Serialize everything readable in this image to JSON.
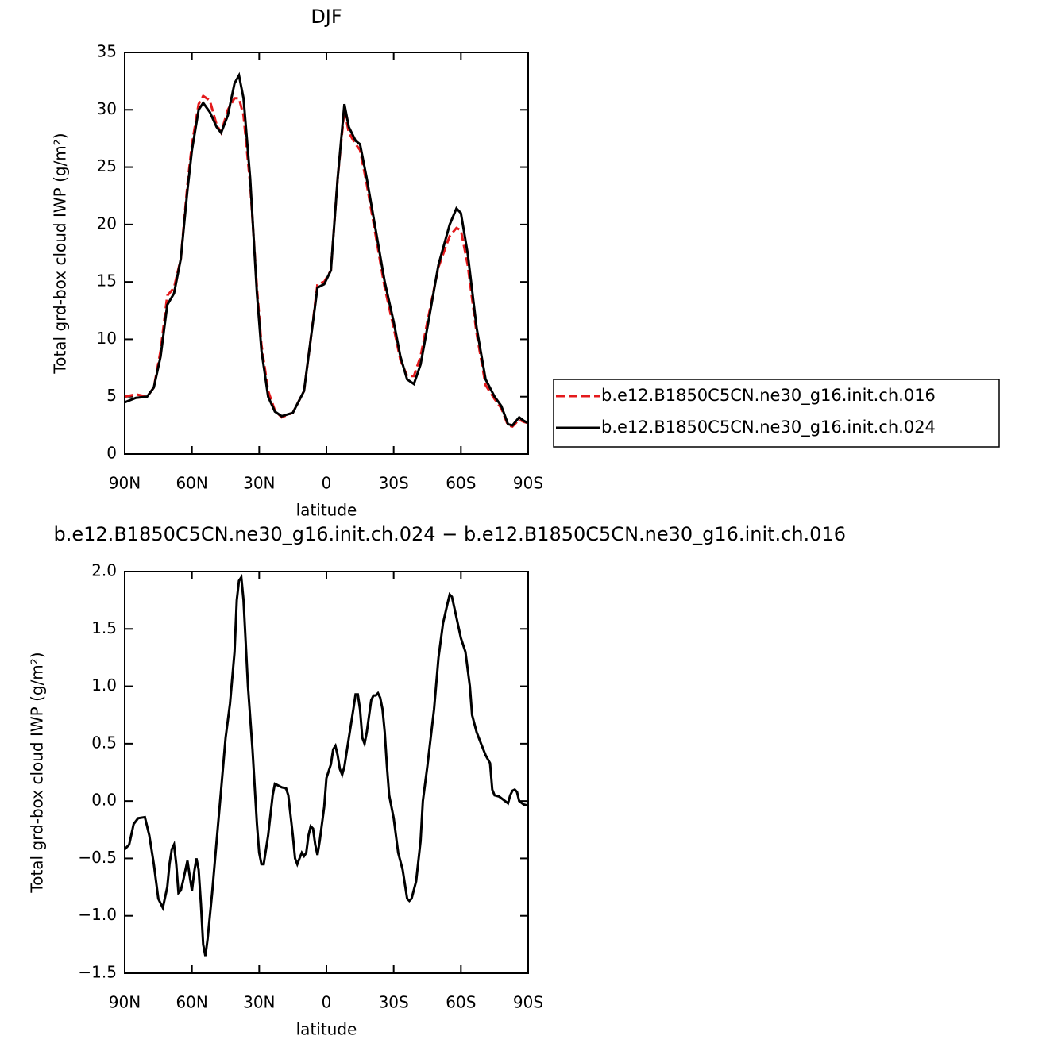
{
  "chart_data": [
    {
      "type": "line",
      "title": "DJF",
      "xlabel": "latitude",
      "ylabel": "Total grd-box cloud IWP (g/m²)",
      "xlim": [
        90,
        -90
      ],
      "xticks": [
        {
          "value": 90,
          "label": "90N"
        },
        {
          "value": 60,
          "label": "60N"
        },
        {
          "value": 30,
          "label": "30N"
        },
        0,
        {
          "value": -30,
          "label": "30S"
        },
        {
          "value": -60,
          "label": "60S"
        },
        {
          "value": -90,
          "label": "90S"
        }
      ],
      "ylim": [
        0,
        35
      ],
      "yticks": [
        0,
        5,
        10,
        15,
        20,
        25,
        30,
        35
      ],
      "legend": "right",
      "x": [
        90,
        85,
        80,
        77,
        74,
        71,
        68,
        65,
        62,
        60,
        57,
        55,
        52,
        49,
        47,
        44,
        41,
        39,
        37,
        34,
        31,
        29,
        26,
        23,
        20,
        15,
        10,
        7,
        4,
        1,
        -2,
        -5,
        -8,
        -10,
        -13,
        -15,
        -18,
        -22,
        -26,
        -30,
        -33,
        -36,
        -39,
        -42,
        -45,
        -50,
        -55,
        -58,
        -60,
        -63,
        -67,
        -71,
        -75,
        -78,
        -81,
        -83,
        -86,
        -88,
        -90
      ],
      "series": [
        {
          "name": "b.e12.B1850C5CN.ne30_g16.init.ch.016",
          "color": "#e41a1c",
          "dash": "dashed",
          "values": [
            5.0,
            5.2,
            5.0,
            5.8,
            9.0,
            13.8,
            14.5,
            17,
            23.5,
            27,
            30.5,
            31.2,
            30.8,
            28.7,
            28.0,
            30.0,
            31.0,
            31.0,
            29.5,
            23.5,
            14.5,
            9.5,
            5.5,
            3.8,
            3.2,
            3.6,
            5.5,
            10,
            14.8,
            15.0,
            16,
            24,
            30.0,
            28,
            27,
            26.5,
            23.5,
            19,
            14.5,
            11.0,
            8.2,
            6.8,
            6.8,
            8.5,
            11.5,
            16.3,
            19,
            19.7,
            19.5,
            16.5,
            10.5,
            6.0,
            4.8,
            4.0,
            2.5,
            2.4,
            3.0,
            2.8,
            2.7
          ]
        },
        {
          "name": "b.e12.B1850C5CN.ne30_g16.init.ch.024",
          "color": "#000000",
          "dash": "solid",
          "values": [
            4.5,
            4.9,
            5.0,
            5.8,
            8.5,
            13.0,
            14.0,
            17,
            23,
            26.5,
            30.0,
            30.6,
            29.8,
            28.5,
            28.0,
            29.5,
            32.3,
            33.0,
            31.0,
            24,
            14,
            9,
            5,
            3.7,
            3.3,
            3.6,
            5.5,
            10,
            14.5,
            14.8,
            16,
            24,
            30.5,
            28.5,
            27.3,
            27,
            24,
            19.5,
            15,
            11.5,
            8.5,
            6.5,
            6.1,
            7.8,
            11,
            16.5,
            20,
            21.4,
            21,
            17.5,
            11,
            6.5,
            5,
            4.2,
            2.6,
            2.5,
            3.2,
            2.9,
            2.7
          ]
        }
      ]
    },
    {
      "type": "line",
      "title": "b.e12.B1850C5CN.ne30_g16.init.ch.024 − b.e12.B1850C5CN.ne30_g16.init.ch.016",
      "xlabel": "latitude",
      "ylabel": "Total grd-box cloud IWP (g/m²)",
      "xlim": [
        90,
        -90
      ],
      "xticks": [
        {
          "value": 90,
          "label": "90N"
        },
        {
          "value": 60,
          "label": "60N"
        },
        {
          "value": 30,
          "label": "30N"
        },
        0,
        {
          "value": -30,
          "label": "30S"
        },
        {
          "value": -60,
          "label": "60S"
        },
        {
          "value": -90,
          "label": "90S"
        }
      ],
      "ylim": [
        -1.5,
        2.0
      ],
      "yticks": [
        {
          "value": -1.5,
          "label": "−1.5"
        },
        {
          "value": -1,
          "label": "−1.0"
        },
        {
          "value": -0.5,
          "label": "−0.5"
        },
        {
          "value": 0,
          "label": "0.0"
        },
        0.5,
        {
          "value": 1,
          "label": "1.0"
        },
        1.5,
        {
          "value": 2,
          "label": "2.0"
        }
      ],
      "color": "#000000",
      "x": [
        90,
        88,
        86,
        84,
        81,
        79,
        77,
        75,
        73,
        71,
        70,
        69,
        68,
        67,
        66,
        65,
        64,
        62,
        61,
        60,
        59,
        58,
        57,
        56,
        55,
        54,
        53,
        51,
        49,
        47,
        45,
        43,
        41,
        40,
        39,
        38,
        37,
        35,
        33,
        31,
        30,
        29,
        28,
        26,
        24,
        23,
        22,
        20,
        18,
        17,
        15,
        14,
        13,
        12,
        11,
        10,
        9,
        8,
        7,
        6,
        5,
        4,
        3,
        1,
        0,
        -2,
        -3,
        -4,
        -5,
        -6,
        -7,
        -8,
        -10,
        -12,
        -13,
        -14,
        -15,
        -16,
        -17,
        -18,
        -20,
        -21,
        -22,
        -23,
        -24,
        -25,
        -26,
        -27,
        -28,
        -30,
        -32,
        -34,
        -36,
        -37,
        -38,
        -40,
        -42,
        -43,
        -45,
        -48,
        -50,
        -52,
        -54,
        -55,
        -56,
        -58,
        -60,
        -62,
        -64,
        -65,
        -67,
        -69,
        -71,
        -73,
        -74,
        -75,
        -77,
        -79,
        -81,
        -82,
        -83,
        -84,
        -85,
        -86,
        -88,
        -90
      ],
      "values": [
        -0.42,
        -0.38,
        -0.2,
        -0.15,
        -0.14,
        -0.3,
        -0.55,
        -0.85,
        -0.93,
        -0.75,
        -0.55,
        -0.42,
        -0.38,
        -0.55,
        -0.8,
        -0.78,
        -0.7,
        -0.52,
        -0.65,
        -0.78,
        -0.62,
        -0.5,
        -0.6,
        -0.9,
        -1.25,
        -1.35,
        -1.2,
        -0.8,
        -0.35,
        0.1,
        0.55,
        0.85,
        1.3,
        1.75,
        1.92,
        1.95,
        1.75,
        1.0,
        0.45,
        -0.2,
        -0.45,
        -0.55,
        -0.55,
        -0.3,
        0.05,
        0.15,
        0.14,
        0.12,
        0.11,
        0.05,
        -0.3,
        -0.5,
        -0.55,
        -0.5,
        -0.45,
        -0.48,
        -0.45,
        -0.3,
        -0.22,
        -0.24,
        -0.38,
        -0.47,
        -0.35,
        -0.05,
        0.2,
        0.32,
        0.45,
        0.48,
        0.4,
        0.28,
        0.23,
        0.3,
        0.55,
        0.8,
        0.93,
        0.93,
        0.8,
        0.55,
        0.5,
        0.6,
        0.88,
        0.92,
        0.92,
        0.94,
        0.9,
        0.8,
        0.6,
        0.3,
        0.05,
        -0.15,
        -0.45,
        -0.6,
        -0.85,
        -0.87,
        -0.85,
        -0.7,
        -0.35,
        0,
        0.3,
        0.8,
        1.25,
        1.55,
        1.72,
        1.8,
        1.78,
        1.6,
        1.42,
        1.3,
        1.0,
        0.75,
        0.6,
        0.5,
        0.4,
        0.33,
        0.1,
        0.05,
        0.04,
        0.01,
        -0.02,
        0.05,
        0.09,
        0.1,
        0.08,
        0.0,
        -0.03,
        -0.04
      ]
    }
  ]
}
